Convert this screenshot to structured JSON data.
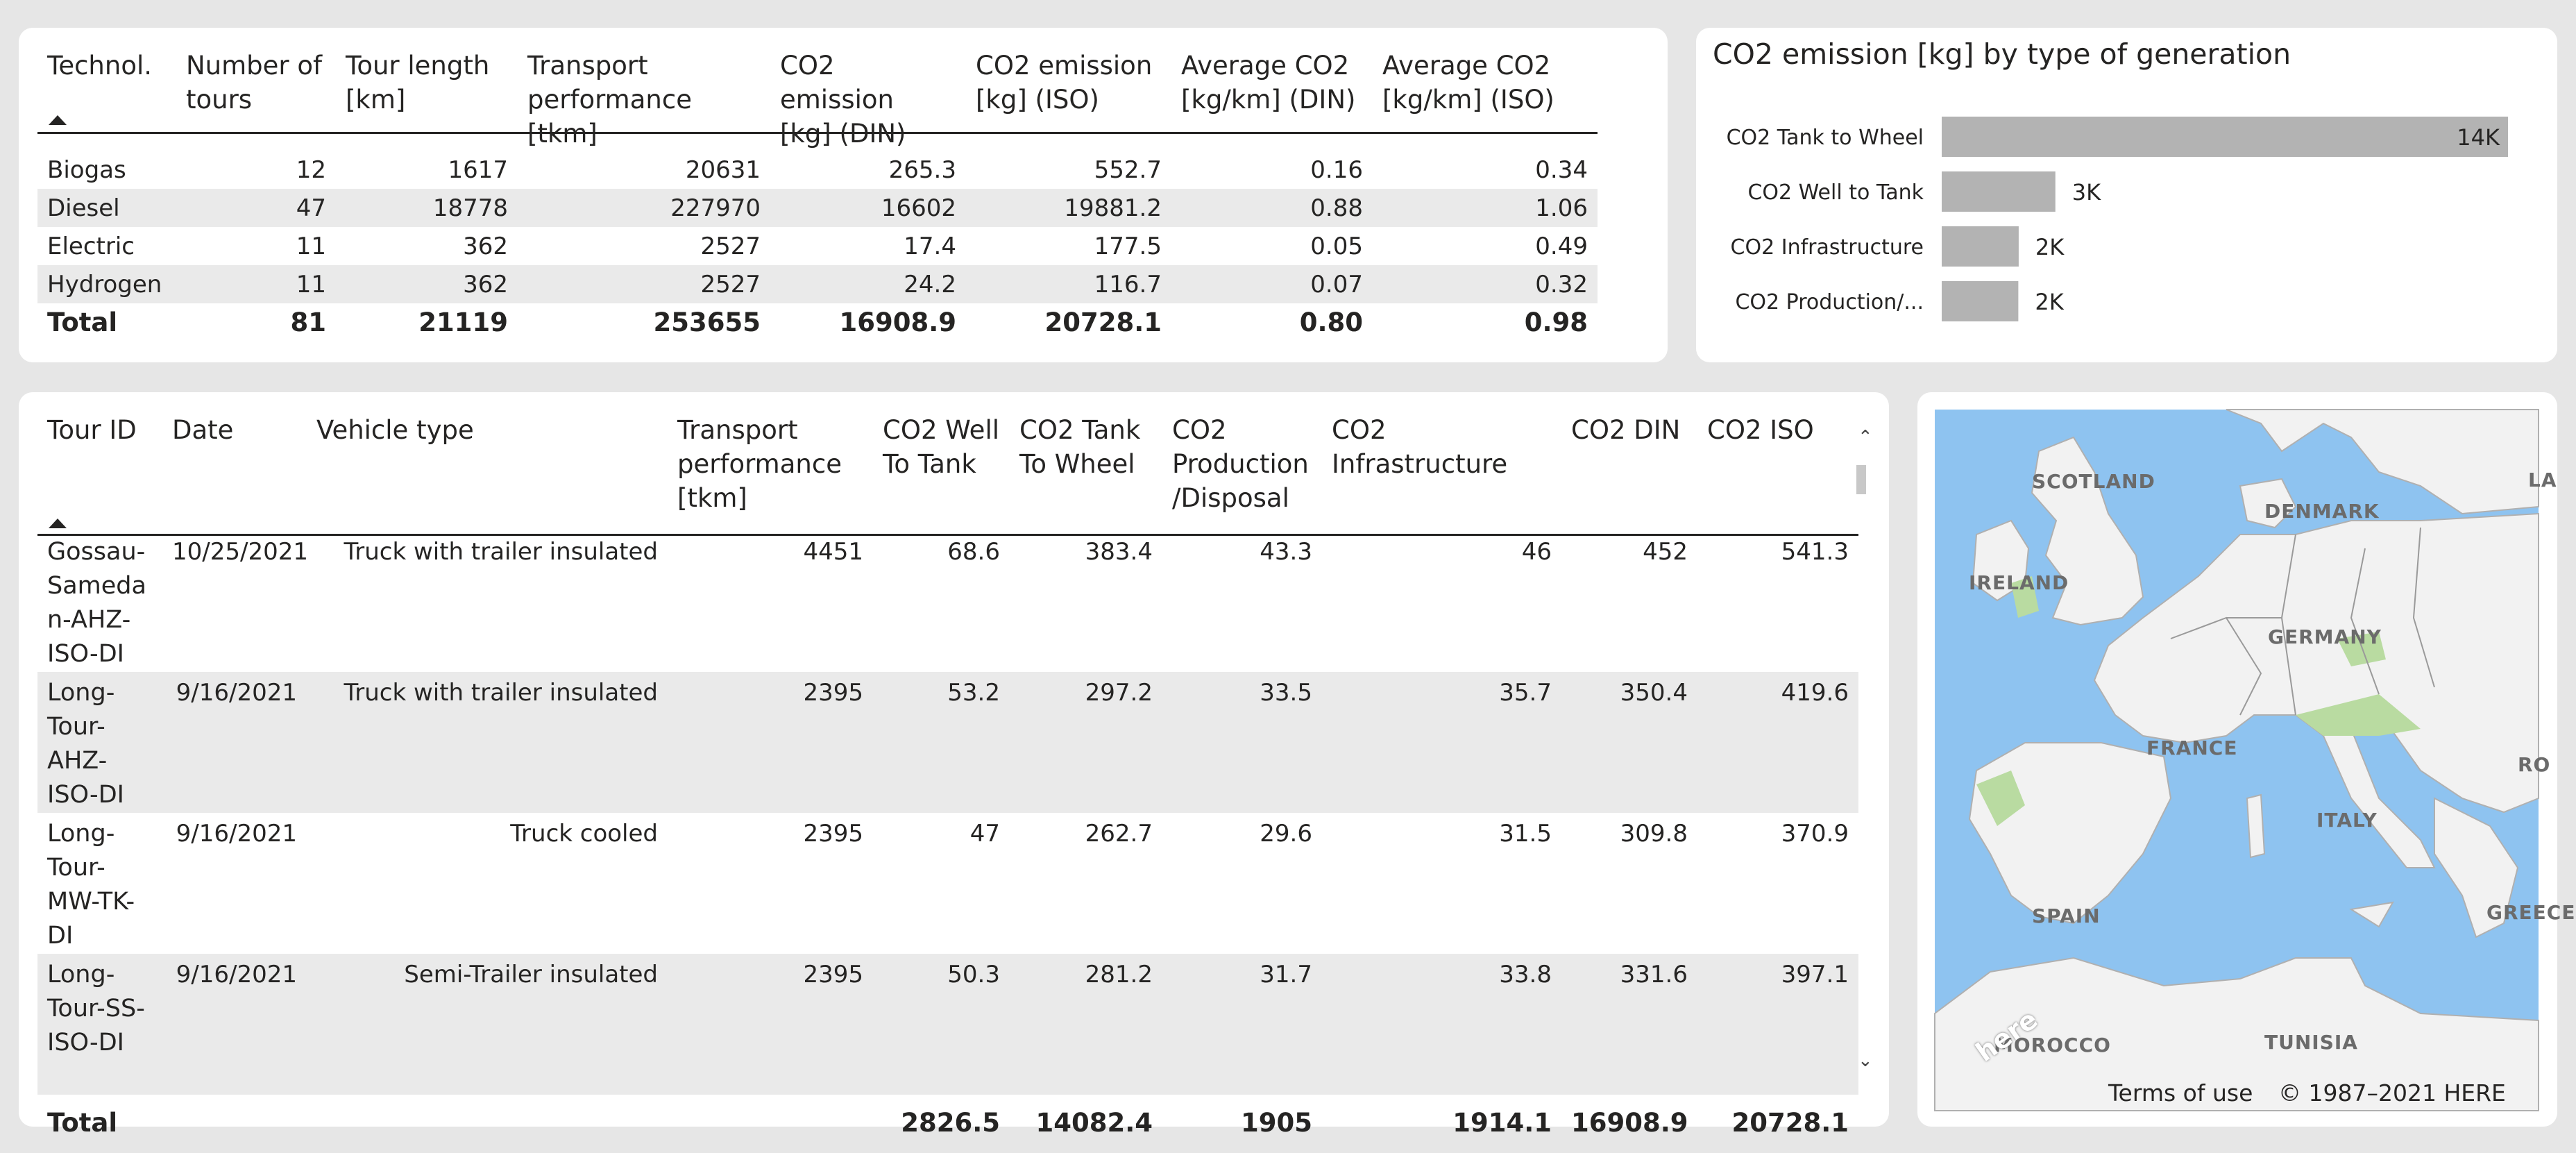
{
  "summary_table": {
    "headers": [
      "Technol.",
      "Number of tours",
      "Tour length [km]",
      "Transport performance [tkm]",
      "CO2 emission [kg] (DIN)",
      "CO2 emission [kg] (ISO)",
      "Average CO2 [kg/km] (DIN)",
      "Average CO2 [kg/km] (ISO)"
    ],
    "header_lines": [
      [
        "Technol.",
        ""
      ],
      [
        "Number of",
        "tours"
      ],
      [
        "Tour length",
        "[km]"
      ],
      [
        "Transport",
        "performance [tkm]"
      ],
      [
        "CO2 emission",
        "[kg] (DIN)"
      ],
      [
        "CO2 emission",
        "[kg] (ISO)"
      ],
      [
        "Average CO2",
        "[kg/km] (DIN)"
      ],
      [
        "Average CO2",
        "[kg/km] (ISO)"
      ]
    ],
    "rows": [
      [
        "Biogas",
        "12",
        "1617",
        "20631",
        "265.3",
        "552.7",
        "0.16",
        "0.34"
      ],
      [
        "Diesel",
        "47",
        "18778",
        "227970",
        "16602",
        "19881.2",
        "0.88",
        "1.06"
      ],
      [
        "Electric",
        "11",
        "362",
        "2527",
        "17.4",
        "177.5",
        "0.05",
        "0.49"
      ],
      [
        "Hydrogen",
        "11",
        "362",
        "2527",
        "24.2",
        "116.7",
        "0.07",
        "0.32"
      ]
    ],
    "total": [
      "Total",
      "81",
      "21119",
      "253655",
      "16908.9",
      "20728.1",
      "0.80",
      "0.98"
    ]
  },
  "bar_chart": {
    "title": "CO2 emission [kg] by type of generation",
    "chart_data": {
      "type": "bar",
      "orientation": "horizontal",
      "title": "CO2 emission [kg] by type of generation",
      "categories": [
        "CO2 Tank to Wheel",
        "CO2 Well to Tank",
        "CO2 Infrastructure",
        "CO2 Production/..."
      ],
      "values": [
        14082.4,
        2826.5,
        1914.1,
        1905
      ],
      "value_labels": [
        "14K",
        "3K",
        "2K",
        "2K"
      ],
      "xlim": [
        0,
        14082.4
      ]
    }
  },
  "tours_table": {
    "header_lines": [
      [
        "Tour ID"
      ],
      [
        "Date"
      ],
      [
        "Vehicle type"
      ],
      [
        "Transport",
        "performance",
        "[tkm]"
      ],
      [
        "CO2 Well",
        "To Tank"
      ],
      [
        "CO2 Tank",
        "To Wheel"
      ],
      [
        "CO2",
        "Production",
        "/Disposal"
      ],
      [
        "CO2 Infrastructure"
      ],
      [
        "CO2 DIN"
      ],
      [
        "CO2 ISO"
      ]
    ],
    "rows": [
      {
        "id_lines": [
          "Gossau-",
          "Sameda",
          "n-AHZ-",
          "ISO-DI"
        ],
        "cells": [
          "10/25/2021",
          "Truck with trailer insulated",
          "4451",
          "68.6",
          "383.4",
          "43.3",
          "46",
          "452",
          "541.3"
        ]
      },
      {
        "id_lines": [
          "Long-",
          "Tour-",
          "AHZ-",
          "ISO-DI"
        ],
        "cells": [
          "9/16/2021",
          "Truck with trailer insulated",
          "2395",
          "53.2",
          "297.2",
          "33.5",
          "35.7",
          "350.4",
          "419.6"
        ]
      },
      {
        "id_lines": [
          "Long-",
          "Tour-",
          "MW-TK-",
          "DI"
        ],
        "cells": [
          "9/16/2021",
          "Truck cooled",
          "2395",
          "47",
          "262.7",
          "29.6",
          "31.5",
          "309.8",
          "370.9"
        ]
      },
      {
        "id_lines": [
          "Long-",
          "Tour-SS-",
          "ISO-DI"
        ],
        "cells": [
          "9/16/2021",
          "Semi-Trailer insulated",
          "2395",
          "50.3",
          "281.2",
          "31.7",
          "33.8",
          "331.6",
          "397.1"
        ]
      }
    ],
    "total": [
      "Total",
      "",
      "",
      "",
      "2826.5",
      "14082.4",
      "1905",
      "1914.1",
      "16908.9",
      "20728.1"
    ]
  },
  "map": {
    "labels": [
      "SCOTLAND",
      "DENMARK",
      "IRELAND",
      "GERMANY",
      "FRANCE",
      "ITALY",
      "SPAIN",
      "MOROCCO",
      "TUNISIA",
      "GREECE",
      "LA",
      "RO"
    ],
    "terms": "Terms of use",
    "copyright": "© 1987–2021 HERE",
    "logo": "here"
  },
  "colors": {
    "bar": "#b3b3b3",
    "shade": "#eaeaea",
    "water": "#8ec3f0",
    "land": "#f2f2f2"
  }
}
